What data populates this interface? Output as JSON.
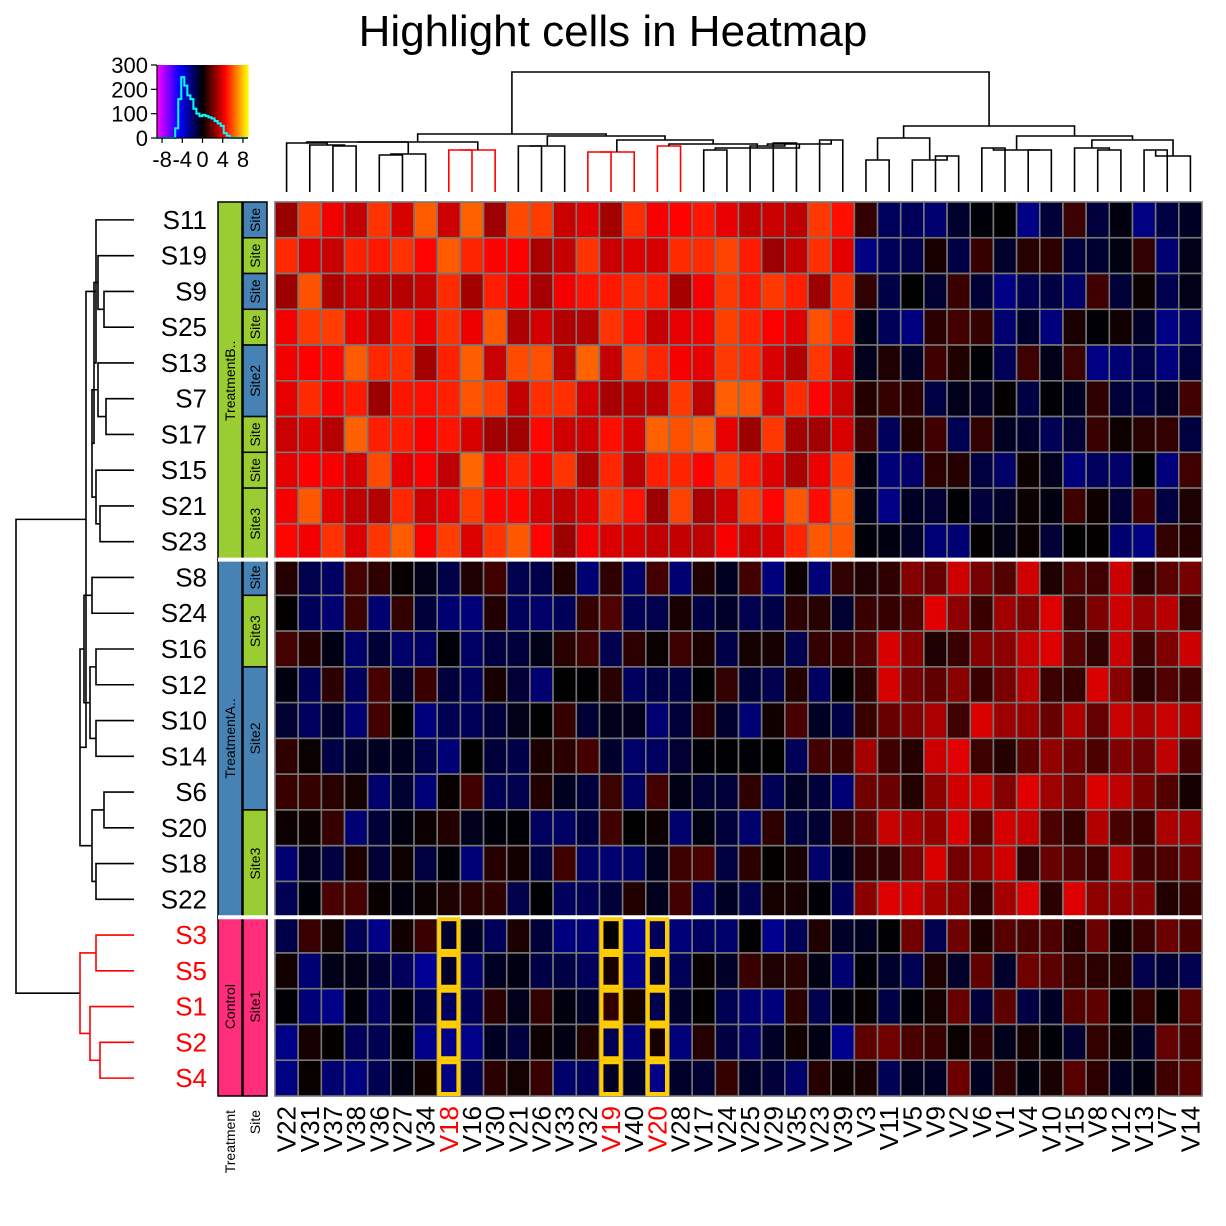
{
  "chart_data": {
    "type": "heatmap",
    "title": "Highlight cells in Heatmap",
    "columns": [
      "V22",
      "V31",
      "V37",
      "V38",
      "V36",
      "V27",
      "V34",
      "V18",
      "V16",
      "V30",
      "V21",
      "V26",
      "V33",
      "V32",
      "V19",
      "V40",
      "V20",
      "V28",
      "V17",
      "V24",
      "V25",
      "V29",
      "V35",
      "V23",
      "V39",
      "V3",
      "V11",
      "V5",
      "V9",
      "V2",
      "V6",
      "V1",
      "V4",
      "V10",
      "V15",
      "V8",
      "V12",
      "V13",
      "V7",
      "V14"
    ],
    "rows": [
      "S11",
      "S19",
      "S9",
      "S25",
      "S13",
      "S7",
      "S17",
      "S15",
      "S21",
      "S23",
      "S8",
      "S24",
      "S16",
      "S12",
      "S10",
      "S14",
      "S6",
      "S20",
      "S18",
      "S22",
      "S3",
      "S5",
      "S1",
      "S2",
      "S4"
    ],
    "highlighted_columns": [
      "V18",
      "V19",
      "V20"
    ],
    "highlighted_rows": [
      "S3",
      "S5",
      "S1",
      "S2",
      "S4"
    ],
    "row_groups": [
      {
        "treatment": "TreatmentB..",
        "rows": 10
      },
      {
        "treatment": "TreatmentA..",
        "rows": 10
      },
      {
        "treatment": "Control",
        "rows": 5
      }
    ],
    "site_segments": [
      {
        "label": "Site",
        "rows": 1
      },
      {
        "label": "Site",
        "rows": 1
      },
      {
        "label": "Site",
        "rows": 1
      },
      {
        "label": "Site",
        "rows": 1
      },
      {
        "label": "Site2",
        "rows": 2
      },
      {
        "label": "Site",
        "rows": 1
      },
      {
        "label": "Site",
        "rows": 1
      },
      {
        "label": "Site3",
        "rows": 2
      },
      {
        "label": "Site",
        "rows": 1
      },
      {
        "label": "Site3",
        "rows": 2
      },
      {
        "label": "Site2",
        "rows": 4
      },
      {
        "label": "Site3",
        "rows": 3
      },
      {
        "label": "Site1",
        "rows": 5
      }
    ],
    "annotation_axis_labels": [
      "Treatment",
      "Site"
    ],
    "color_key": {
      "x_ticks": [
        "-8",
        "-4",
        "0",
        "4",
        "8"
      ],
      "y_ticks": [
        "300",
        "200",
        "100",
        "0"
      ],
      "x_range": [
        -9,
        9
      ],
      "y_range": [
        0,
        300
      ]
    },
    "block_means": {
      "TreatmentB_left_cluster": 4.5,
      "TreatmentB_right_cluster": -0.6,
      "TreatmentA_left_cluster": -0.4,
      "TreatmentA_right_cluster": 2.2,
      "Control_left_cluster": -0.8,
      "Control_right_cluster": 0.2
    },
    "colors": {
      "highlight_border": "#ffcc00",
      "highlight_label": "#ff0000",
      "highlight_dendrogram": "#ff0000",
      "treatmentB": "#9acd32",
      "treatmentA": "#4682b4",
      "control": "#ff2d7a",
      "site1": "#ff2d7a",
      "site2": "#4682b4",
      "site3": "#9acd32",
      "grid": "#777777",
      "palette": [
        "#ff00ff",
        "#0000ff",
        "#000000",
        "#ff0000",
        "#ffff00"
      ]
    }
  }
}
